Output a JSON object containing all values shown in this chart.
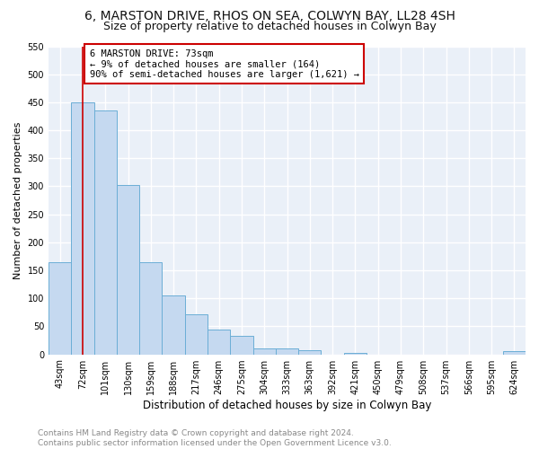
{
  "title": "6, MARSTON DRIVE, RHOS ON SEA, COLWYN BAY, LL28 4SH",
  "subtitle": "Size of property relative to detached houses in Colwyn Bay",
  "xlabel": "Distribution of detached houses by size in Colwyn Bay",
  "ylabel": "Number of detached properties",
  "bar_labels": [
    "43sqm",
    "72sqm",
    "101sqm",
    "130sqm",
    "159sqm",
    "188sqm",
    "217sqm",
    "246sqm",
    "275sqm",
    "304sqm",
    "333sqm",
    "363sqm",
    "392sqm",
    "421sqm",
    "450sqm",
    "479sqm",
    "508sqm",
    "537sqm",
    "566sqm",
    "595sqm",
    "624sqm"
  ],
  "bar_values": [
    164,
    450,
    435,
    303,
    165,
    105,
    72,
    44,
    33,
    11,
    11,
    8,
    0,
    2,
    0,
    0,
    0,
    0,
    0,
    0,
    5
  ],
  "bar_color": "#c5d9f0",
  "bar_edge_color": "#6baed6",
  "vline_x": 1.0,
  "vline_color": "#cc0000",
  "annotation_text": "6 MARSTON DRIVE: 73sqm\n← 9% of detached houses are smaller (164)\n90% of semi-detached houses are larger (1,621) →",
  "annotation_box_facecolor": "#ffffff",
  "annotation_box_edgecolor": "#cc0000",
  "ylim": [
    0,
    550
  ],
  "yticks": [
    0,
    50,
    100,
    150,
    200,
    250,
    300,
    350,
    400,
    450,
    500,
    550
  ],
  "footer_text": "Contains HM Land Registry data © Crown copyright and database right 2024.\nContains public sector information licensed under the Open Government Licence v3.0.",
  "fig_facecolor": "#ffffff",
  "ax_facecolor": "#eaf0f8",
  "grid_color": "#ffffff",
  "title_fontsize": 10,
  "subtitle_fontsize": 9,
  "xlabel_fontsize": 8.5,
  "ylabel_fontsize": 8,
  "tick_fontsize": 7,
  "annotation_fontsize": 7.5,
  "footer_fontsize": 6.5
}
